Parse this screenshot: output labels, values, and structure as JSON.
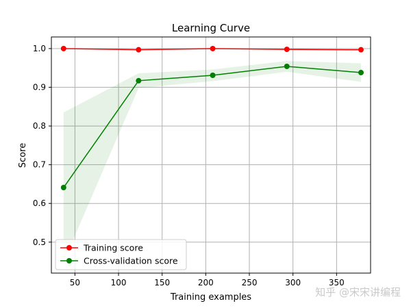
{
  "watermark": "知乎 @宋宋讲编程",
  "chart_data": {
    "type": "line",
    "title": "Learning Curve",
    "xlabel": "Training examples",
    "ylabel": "Score",
    "xlim": [
      23,
      389
    ],
    "ylim": [
      0.42,
      1.03
    ],
    "xticks": [
      50,
      100,
      150,
      200,
      250,
      300,
      350
    ],
    "yticks": [
      0.5,
      0.6,
      0.7,
      0.8,
      0.9,
      1.0
    ],
    "xtick_labels": [
      "50",
      "100",
      "150",
      "200",
      "250",
      "300",
      "350"
    ],
    "ytick_labels": [
      "0.5",
      "0.6",
      "0.7",
      "0.8",
      "0.9",
      "1.0"
    ],
    "grid": true,
    "legend_position": "lower left",
    "x": [
      37,
      123,
      208,
      293,
      378
    ],
    "series": [
      {
        "name": "Training score",
        "color": "#ff0000",
        "fill_color": "#ff0000",
        "values": [
          1.0,
          0.997,
          1.0,
          0.998,
          0.997
        ],
        "band_lower": [
          0.999,
          0.995,
          0.999,
          0.996,
          0.995
        ],
        "band_upper": [
          1.0,
          0.999,
          1.0,
          1.0,
          0.999
        ]
      },
      {
        "name": "Cross-validation score",
        "color": "#008000",
        "fill_color": "#008000",
        "values": [
          0.641,
          0.917,
          0.931,
          0.954,
          0.938
        ],
        "band_lower": [
          0.449,
          0.898,
          0.916,
          0.94,
          0.914
        ],
        "band_upper": [
          0.835,
          0.936,
          0.946,
          0.968,
          0.962
        ]
      }
    ]
  }
}
